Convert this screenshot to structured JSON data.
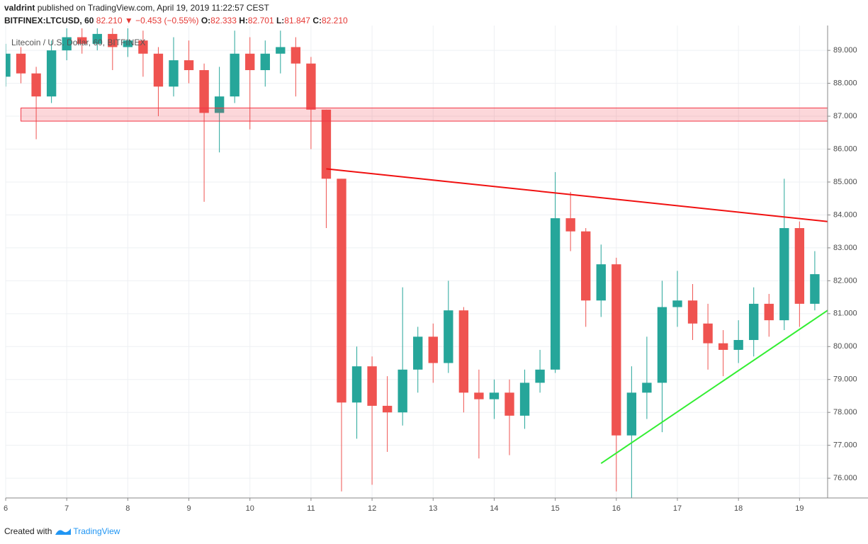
{
  "header": {
    "author": "valdrint",
    "published": "published on TradingView.com, April 19, 2019 11:22:57 CEST",
    "symbol": "BITFINEX:LTCUSD, 60",
    "last": "82.210",
    "arrow": "▼",
    "change": "−0.453 (−0.55%)",
    "open_label": "O:",
    "open": "82.333",
    "high_label": "H:",
    "high": "82.701",
    "low_label": "L:",
    "low": "81.847",
    "close_label": "C:",
    "close": "82.210"
  },
  "chart_data": {
    "type": "candlestick",
    "legend_text": "Litecoin / U.S. Dollar, 60, BITFINEX",
    "up_color": "#26a69a",
    "down_color": "#ef5350",
    "grid": true,
    "xlim": [
      6,
      19.46
    ],
    "xticks": [
      6,
      7,
      8,
      9,
      10,
      11,
      12,
      13,
      14,
      15,
      16,
      17,
      18,
      19
    ],
    "ylim": [
      75.4,
      89.67
    ],
    "yticks": [
      {
        "value": 76,
        "label": "76.000"
      },
      {
        "value": 77,
        "label": "77.000"
      },
      {
        "value": 78,
        "label": "78.000"
      },
      {
        "value": 79,
        "label": "79.000"
      },
      {
        "value": 80,
        "label": "80.000"
      },
      {
        "value": 81,
        "label": "81.000"
      },
      {
        "value": 82,
        "label": "82.000"
      },
      {
        "value": 83,
        "label": "83.000"
      },
      {
        "value": 84,
        "label": "84.000"
      },
      {
        "value": 85,
        "label": "85.000"
      },
      {
        "value": 86,
        "label": "86.000"
      },
      {
        "value": 87,
        "label": "87.000"
      },
      {
        "value": 88,
        "label": "88.000"
      },
      {
        "value": 89,
        "label": "89.000"
      }
    ],
    "x": [
      6,
      6.25,
      6.5,
      6.75,
      7,
      7.25,
      7.5,
      7.75,
      8,
      8.25,
      8.5,
      8.75,
      9,
      9.25,
      9.5,
      9.75,
      10,
      10.25,
      10.5,
      10.75,
      11,
      11.25,
      11.5,
      11.75,
      12,
      12.25,
      12.5,
      12.75,
      13,
      13.25,
      13.5,
      13.75,
      14,
      14.25,
      14.5,
      14.75,
      15,
      15.25,
      15.5,
      15.75,
      16,
      16.25,
      16.5,
      16.75,
      17,
      17.25,
      17.5,
      17.75,
      18,
      18.25,
      18.5,
      18.75,
      19,
      19.25
    ],
    "open": [
      88.2,
      88.9,
      88.3,
      87.6,
      89.0,
      89.4,
      89.2,
      89.5,
      89.1,
      89.3,
      88.9,
      87.9,
      88.7,
      88.4,
      87.1,
      87.6,
      88.9,
      88.4,
      88.9,
      89.1,
      88.6,
      87.2,
      85.1,
      78.3,
      79.4,
      78.2,
      78.0,
      79.3,
      80.3,
      79.5,
      81.1,
      78.6,
      78.4,
      78.6,
      77.9,
      78.9,
      79.3,
      83.9,
      83.5,
      81.4,
      82.5,
      77.3,
      78.6,
      78.9,
      81.2,
      81.4,
      80.7,
      80.1,
      79.9,
      80.2,
      81.3,
      80.8,
      83.6,
      81.3
    ],
    "high": [
      89.2,
      89.1,
      88.5,
      89.3,
      89.9,
      89.8,
      89.9,
      89.8,
      89.7,
      89.6,
      89.1,
      89.4,
      89.3,
      88.6,
      88.5,
      89.6,
      89.4,
      89.3,
      89.6,
      89.4,
      88.8,
      87.2,
      85.1,
      80.0,
      79.7,
      79.1,
      81.8,
      80.6,
      80.7,
      82.0,
      81.2,
      79.3,
      79.0,
      79.0,
      79.3,
      79.9,
      85.3,
      84.7,
      83.6,
      83.1,
      82.7,
      79.4,
      80.3,
      82.0,
      82.3,
      81.9,
      81.3,
      80.5,
      80.8,
      81.8,
      81.6,
      85.1,
      83.8,
      82.9
    ],
    "low": [
      87.9,
      88.0,
      86.3,
      87.4,
      88.7,
      88.9,
      89.0,
      88.4,
      88.8,
      88.2,
      87.0,
      87.6,
      88.0,
      84.4,
      85.9,
      87.4,
      86.6,
      87.9,
      88.3,
      87.6,
      86.0,
      83.6,
      75.6,
      77.2,
      75.8,
      76.8,
      77.6,
      78.6,
      78.9,
      79.2,
      78.0,
      76.6,
      77.8,
      76.7,
      77.5,
      78.6,
      79.2,
      82.9,
      80.6,
      80.9,
      75.6,
      75.4,
      77.8,
      77.4,
      80.6,
      80.2,
      79.3,
      79.1,
      79.5,
      79.7,
      80.3,
      80.5,
      80.6,
      81.1
    ],
    "close": [
      88.9,
      88.3,
      87.6,
      89.0,
      89.4,
      89.2,
      89.5,
      89.1,
      89.3,
      88.9,
      87.9,
      88.7,
      88.4,
      87.1,
      87.6,
      88.9,
      88.4,
      88.9,
      89.1,
      88.6,
      87.2,
      85.1,
      78.3,
      79.4,
      78.2,
      78.0,
      79.3,
      80.3,
      79.5,
      81.1,
      78.6,
      78.4,
      78.6,
      77.9,
      78.9,
      79.3,
      83.9,
      83.5,
      81.4,
      82.5,
      77.3,
      78.6,
      78.9,
      81.2,
      81.4,
      80.7,
      80.1,
      79.9,
      80.2,
      81.3,
      80.8,
      83.6,
      81.3,
      82.2
    ],
    "shapes": [
      {
        "kind": "rect",
        "x": [
          6.25,
          19.46
        ],
        "y": [
          86.85,
          87.25
        ],
        "color": "#f23645"
      },
      {
        "kind": "line",
        "x": [
          11.25,
          19.46
        ],
        "y": [
          85.4,
          83.8
        ],
        "color": "#f01010"
      },
      {
        "kind": "line",
        "x": [
          15.75,
          19.46
        ],
        "y": [
          76.45,
          81.1
        ],
        "color": "#33ee33"
      }
    ]
  },
  "footer": {
    "created": "Created with",
    "brand": "TradingView"
  }
}
